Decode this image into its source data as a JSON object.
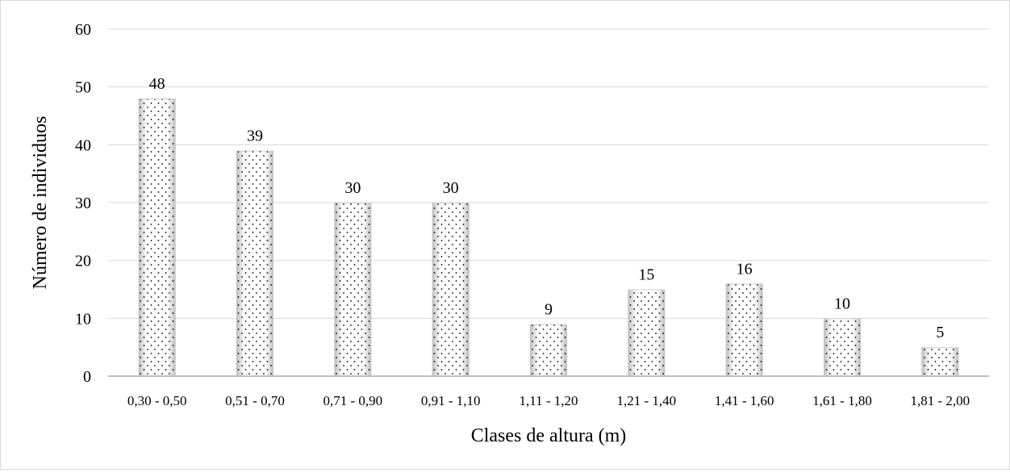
{
  "chart_data": {
    "type": "bar",
    "title": "",
    "xlabel": "Clases de altura (m)",
    "ylabel": "Número de individuos",
    "categories": [
      "0,30 - 0,50",
      "0,51 - 0,70",
      "0,71 - 0,90",
      "0,91 - 1,10",
      "1,11 - 1,20",
      "1,21 - 1,40",
      "1,41 - 1,60",
      "1,61 - 1,80",
      "1,81 - 2,00"
    ],
    "values": [
      48,
      39,
      30,
      30,
      9,
      15,
      16,
      10,
      5
    ],
    "data_labels": [
      "48",
      "39",
      "30",
      "30",
      "9",
      "15",
      "16",
      "10",
      "5"
    ],
    "ylim": [
      0,
      60
    ],
    "yticks": [
      "0",
      "10",
      "20",
      "30",
      "40",
      "50",
      "60"
    ],
    "grid": true,
    "legend": "none",
    "bar_style": "dotted pattern with gray gradient edges"
  },
  "colors": {
    "bar_edge": "#bfbfbf",
    "bar_center": "#ffffff",
    "dots": "#000000",
    "gridline": "#d9d9d9",
    "axis": "#bfbfbf"
  }
}
